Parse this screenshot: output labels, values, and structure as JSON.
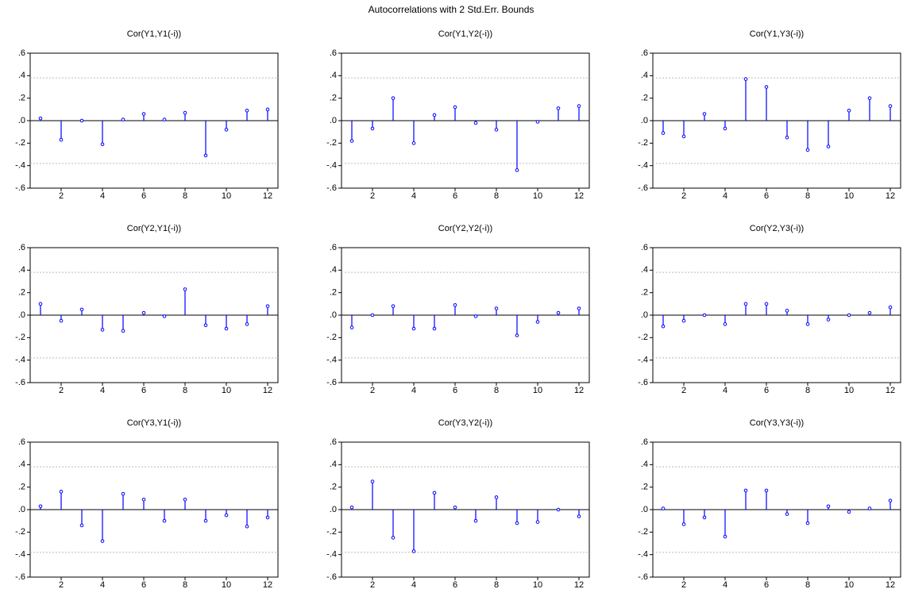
{
  "title": "Autocorrelations with 2 Std.Err. Bounds",
  "chart_data": [
    {
      "type": "stem",
      "title": "Cor(Y1,Y1(-i))",
      "x": [
        1,
        2,
        3,
        4,
        5,
        6,
        7,
        8,
        9,
        10,
        11,
        12
      ],
      "values": [
        0.02,
        -0.17,
        0.0,
        -0.21,
        0.01,
        0.06,
        0.01,
        0.07,
        -0.31,
        -0.08,
        0.09,
        0.1
      ],
      "color": "#0000ff",
      "bounds": [
        -0.38,
        0.38
      ],
      "xlim": [
        0.5,
        12.5
      ],
      "ylim": [
        -0.6,
        0.6
      ],
      "xticks": [
        2,
        4,
        6,
        8,
        10,
        12
      ],
      "yticks": [
        {
          "value": -0.6,
          "label": "-.6"
        },
        {
          "value": -0.4,
          "label": "-.4"
        },
        {
          "value": -0.2,
          "label": "-.2"
        },
        {
          "value": 0,
          "label": ".0"
        },
        {
          "value": 0.2,
          "label": ".2"
        },
        {
          "value": 0.4,
          "label": ".4"
        },
        {
          "value": 0.6,
          "label": ".6"
        }
      ]
    },
    {
      "type": "stem",
      "title": "Cor(Y1,Y2(-i))",
      "x": [
        1,
        2,
        3,
        4,
        5,
        6,
        7,
        8,
        9,
        10,
        11,
        12
      ],
      "values": [
        -0.18,
        -0.07,
        0.2,
        -0.2,
        0.05,
        0.12,
        -0.02,
        -0.08,
        -0.44,
        -0.01,
        0.11,
        0.13
      ],
      "color": "#0000ff",
      "bounds": [
        -0.38,
        0.38
      ],
      "xlim": [
        0.5,
        12.5
      ],
      "ylim": [
        -0.6,
        0.6
      ],
      "xticks": [
        2,
        4,
        6,
        8,
        10,
        12
      ],
      "yticks": [
        {
          "value": -0.6,
          "label": "-.6"
        },
        {
          "value": -0.4,
          "label": "-.4"
        },
        {
          "value": -0.2,
          "label": "-.2"
        },
        {
          "value": 0,
          "label": ".0"
        },
        {
          "value": 0.2,
          "label": ".2"
        },
        {
          "value": 0.4,
          "label": ".4"
        },
        {
          "value": 0.6,
          "label": ".6"
        }
      ]
    },
    {
      "type": "stem",
      "title": "Cor(Y1,Y3(-i))",
      "x": [
        1,
        2,
        3,
        4,
        5,
        6,
        7,
        8,
        9,
        10,
        11,
        12
      ],
      "values": [
        -0.11,
        -0.14,
        0.06,
        -0.07,
        0.37,
        0.3,
        -0.15,
        -0.26,
        -0.23,
        0.09,
        0.2,
        0.13
      ],
      "color": "#0000ff",
      "bounds": [
        -0.38,
        0.38
      ],
      "xlim": [
        0.5,
        12.5
      ],
      "ylim": [
        -0.6,
        0.6
      ],
      "xticks": [
        2,
        4,
        6,
        8,
        10,
        12
      ],
      "yticks": [
        {
          "value": -0.6,
          "label": "-.6"
        },
        {
          "value": -0.4,
          "label": "-.4"
        },
        {
          "value": -0.2,
          "label": "-.2"
        },
        {
          "value": 0,
          "label": ".0"
        },
        {
          "value": 0.2,
          "label": ".2"
        },
        {
          "value": 0.4,
          "label": ".4"
        },
        {
          "value": 0.6,
          "label": ".6"
        }
      ]
    },
    {
      "type": "stem",
      "title": "Cor(Y2,Y1(-i))",
      "x": [
        1,
        2,
        3,
        4,
        5,
        6,
        7,
        8,
        9,
        10,
        11,
        12
      ],
      "values": [
        0.1,
        -0.05,
        0.05,
        -0.13,
        -0.14,
        0.02,
        -0.01,
        0.23,
        -0.09,
        -0.12,
        -0.08,
        0.08
      ],
      "color": "#0000ff",
      "bounds": [
        -0.38,
        0.38
      ],
      "xlim": [
        0.5,
        12.5
      ],
      "ylim": [
        -0.6,
        0.6
      ],
      "xticks": [
        2,
        4,
        6,
        8,
        10,
        12
      ],
      "yticks": [
        {
          "value": -0.6,
          "label": "-.6"
        },
        {
          "value": -0.4,
          "label": "-.4"
        },
        {
          "value": -0.2,
          "label": "-.2"
        },
        {
          "value": 0,
          "label": ".0"
        },
        {
          "value": 0.2,
          "label": ".2"
        },
        {
          "value": 0.4,
          "label": ".4"
        },
        {
          "value": 0.6,
          "label": ".6"
        }
      ]
    },
    {
      "type": "stem",
      "title": "Cor(Y2,Y2(-i))",
      "x": [
        1,
        2,
        3,
        4,
        5,
        6,
        7,
        8,
        9,
        10,
        11,
        12
      ],
      "values": [
        -0.11,
        0.0,
        0.08,
        -0.12,
        -0.12,
        0.09,
        -0.01,
        0.06,
        -0.18,
        -0.06,
        0.02,
        0.06
      ],
      "color": "#0000ff",
      "bounds": [
        -0.38,
        0.38
      ],
      "xlim": [
        0.5,
        12.5
      ],
      "ylim": [
        -0.6,
        0.6
      ],
      "xticks": [
        2,
        4,
        6,
        8,
        10,
        12
      ],
      "yticks": [
        {
          "value": -0.6,
          "label": "-.6"
        },
        {
          "value": -0.4,
          "label": "-.4"
        },
        {
          "value": -0.2,
          "label": "-.2"
        },
        {
          "value": 0,
          "label": ".0"
        },
        {
          "value": 0.2,
          "label": ".2"
        },
        {
          "value": 0.4,
          "label": ".4"
        },
        {
          "value": 0.6,
          "label": ".6"
        }
      ]
    },
    {
      "type": "stem",
      "title": "Cor(Y2,Y3(-i))",
      "x": [
        1,
        2,
        3,
        4,
        5,
        6,
        7,
        8,
        9,
        10,
        11,
        12
      ],
      "values": [
        -0.1,
        -0.05,
        0.0,
        -0.08,
        0.1,
        0.1,
        0.04,
        -0.08,
        -0.04,
        0.0,
        0.02,
        0.07
      ],
      "color": "#0000ff",
      "bounds": [
        -0.38,
        0.38
      ],
      "xlim": [
        0.5,
        12.5
      ],
      "ylim": [
        -0.6,
        0.6
      ],
      "xticks": [
        2,
        4,
        6,
        8,
        10,
        12
      ],
      "yticks": [
        {
          "value": -0.6,
          "label": "-.6"
        },
        {
          "value": -0.4,
          "label": "-.4"
        },
        {
          "value": -0.2,
          "label": "-.2"
        },
        {
          "value": 0,
          "label": ".0"
        },
        {
          "value": 0.2,
          "label": ".2"
        },
        {
          "value": 0.4,
          "label": ".4"
        },
        {
          "value": 0.6,
          "label": ".6"
        }
      ]
    },
    {
      "type": "stem",
      "title": "Cor(Y3,Y1(-i))",
      "x": [
        1,
        2,
        3,
        4,
        5,
        6,
        7,
        8,
        9,
        10,
        11,
        12
      ],
      "values": [
        0.03,
        0.16,
        -0.14,
        -0.28,
        0.14,
        0.09,
        -0.1,
        0.09,
        -0.1,
        -0.05,
        -0.15,
        -0.07
      ],
      "color": "#0000ff",
      "bounds": [
        -0.38,
        0.38
      ],
      "xlim": [
        0.5,
        12.5
      ],
      "ylim": [
        -0.6,
        0.6
      ],
      "xticks": [
        2,
        4,
        6,
        8,
        10,
        12
      ],
      "yticks": [
        {
          "value": -0.6,
          "label": "-.6"
        },
        {
          "value": -0.4,
          "label": "-.4"
        },
        {
          "value": -0.2,
          "label": "-.2"
        },
        {
          "value": 0,
          "label": ".0"
        },
        {
          "value": 0.2,
          "label": ".2"
        },
        {
          "value": 0.4,
          "label": ".4"
        },
        {
          "value": 0.6,
          "label": ".6"
        }
      ]
    },
    {
      "type": "stem",
      "title": "Cor(Y3,Y2(-i))",
      "x": [
        1,
        2,
        3,
        4,
        5,
        6,
        7,
        8,
        9,
        10,
        11,
        12
      ],
      "values": [
        0.02,
        0.25,
        -0.25,
        -0.37,
        0.15,
        0.02,
        -0.1,
        0.11,
        -0.12,
        -0.11,
        0.0,
        -0.06
      ],
      "color": "#0000ff",
      "bounds": [
        -0.38,
        0.38
      ],
      "xlim": [
        0.5,
        12.5
      ],
      "ylim": [
        -0.6,
        0.6
      ],
      "xticks": [
        2,
        4,
        6,
        8,
        10,
        12
      ],
      "yticks": [
        {
          "value": -0.6,
          "label": "-.6"
        },
        {
          "value": -0.4,
          "label": "-.4"
        },
        {
          "value": -0.2,
          "label": "-.2"
        },
        {
          "value": 0,
          "label": ".0"
        },
        {
          "value": 0.2,
          "label": ".2"
        },
        {
          "value": 0.4,
          "label": ".4"
        },
        {
          "value": 0.6,
          "label": ".6"
        }
      ]
    },
    {
      "type": "stem",
      "title": "Cor(Y3,Y3(-i))",
      "x": [
        1,
        2,
        3,
        4,
        5,
        6,
        7,
        8,
        9,
        10,
        11,
        12
      ],
      "values": [
        0.01,
        -0.13,
        -0.07,
        -0.24,
        0.17,
        0.17,
        -0.04,
        -0.12,
        0.03,
        -0.02,
        0.01,
        0.08
      ],
      "color": "#0000ff",
      "bounds": [
        -0.38,
        0.38
      ],
      "xlim": [
        0.5,
        12.5
      ],
      "ylim": [
        -0.6,
        0.6
      ],
      "xticks": [
        2,
        4,
        6,
        8,
        10,
        12
      ],
      "yticks": [
        {
          "value": -0.6,
          "label": "-.6"
        },
        {
          "value": -0.4,
          "label": "-.4"
        },
        {
          "value": -0.2,
          "label": "-.2"
        },
        {
          "value": 0,
          "label": ".0"
        },
        {
          "value": 0.2,
          "label": ".2"
        },
        {
          "value": 0.4,
          "label": ".4"
        },
        {
          "value": 0.6,
          "label": ".6"
        }
      ]
    }
  ]
}
